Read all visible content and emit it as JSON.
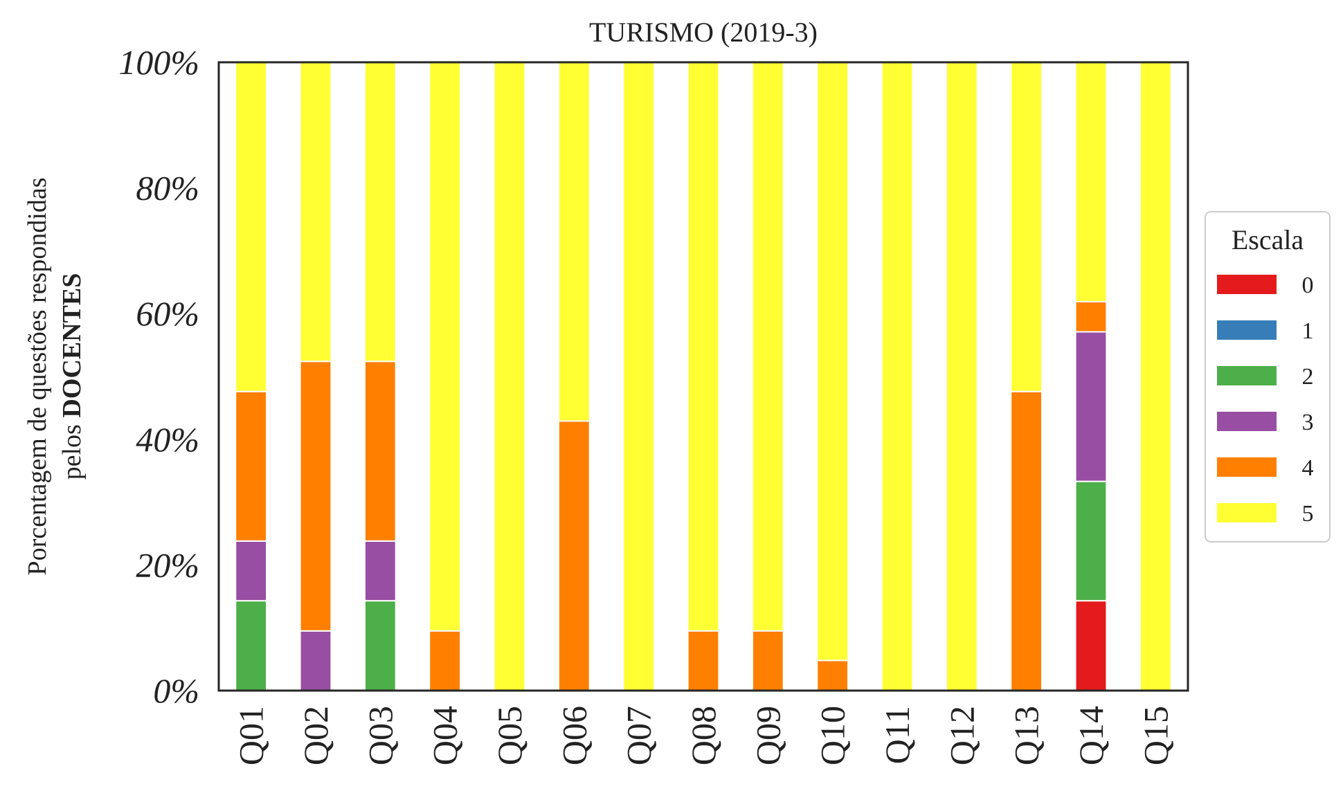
{
  "chart_data": {
    "type": "bar",
    "stacked": true,
    "title": "TURISMO (2019-3)",
    "ylabel_line1": "Porcentagem de questões respondidas",
    "ylabel_line2_prefix": "pelos ",
    "ylabel_line2_bold": "DOCENTES",
    "xlabel": "",
    "ylim": [
      0,
      100
    ],
    "yticks": [
      "0%",
      "20%",
      "40%",
      "60%",
      "80%",
      "100%"
    ],
    "ytick_values": [
      0,
      20,
      40,
      60,
      80,
      100
    ],
    "grid": false,
    "legend_position": "right",
    "legend_title": "Escala",
    "categories": [
      "Q01",
      "Q02",
      "Q03",
      "Q04",
      "Q05",
      "Q06",
      "Q07",
      "Q08",
      "Q09",
      "Q10",
      "Q11",
      "Q12",
      "Q13",
      "Q14",
      "Q15"
    ],
    "series": [
      {
        "name": "0",
        "color": "#e41a1c",
        "values": [
          0,
          0,
          0,
          0,
          0,
          0,
          0,
          0,
          0,
          0,
          0,
          0,
          0,
          14.3,
          0
        ]
      },
      {
        "name": "1",
        "color": "#377eb8",
        "values": [
          0,
          0,
          0,
          0,
          0,
          0,
          0,
          0,
          0,
          0,
          0,
          0,
          0,
          0,
          0
        ]
      },
      {
        "name": "2",
        "color": "#4daf4a",
        "values": [
          14.3,
          0,
          14.3,
          0,
          0,
          0,
          0,
          0,
          0,
          0,
          0,
          0,
          0,
          19.0,
          0
        ]
      },
      {
        "name": "3",
        "color": "#984ea3",
        "values": [
          9.5,
          9.5,
          9.5,
          0,
          0,
          0,
          0,
          0,
          0,
          0,
          0,
          0,
          0,
          23.8,
          0
        ]
      },
      {
        "name": "4",
        "color": "#ff7f00",
        "values": [
          23.8,
          42.9,
          28.6,
          9.5,
          0,
          42.9,
          0,
          9.5,
          9.5,
          4.8,
          0,
          0,
          47.6,
          4.8,
          0
        ]
      },
      {
        "name": "5",
        "color": "#ffff33",
        "values": [
          52.4,
          47.6,
          47.6,
          90.5,
          100,
          57.1,
          100,
          90.5,
          90.5,
          95.2,
          100,
          100,
          52.4,
          38.1,
          100
        ]
      }
    ]
  }
}
